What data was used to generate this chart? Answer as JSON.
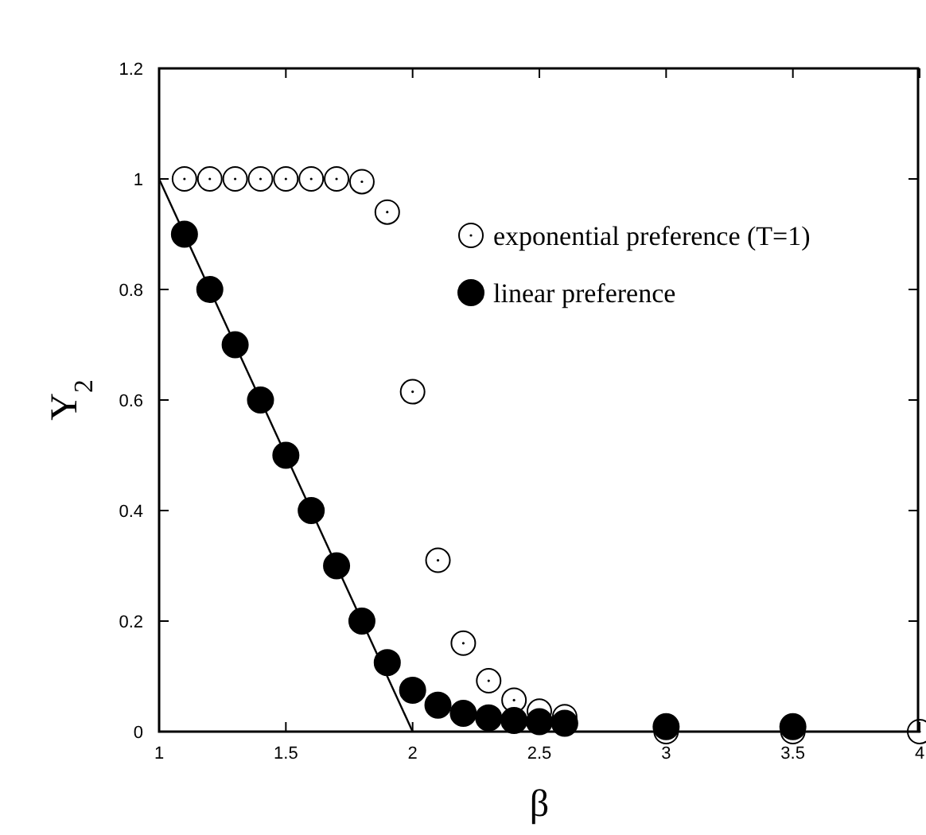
{
  "chart_data": {
    "type": "scatter",
    "xlabel": "β",
    "ylabel": "Y$_{2}$",
    "xlim": [
      1,
      4
    ],
    "ylim": [
      0,
      1.2
    ],
    "xticks": [
      1,
      1.5,
      2,
      2.5,
      3,
      3.5,
      4
    ],
    "yticks": [
      0,
      0.2,
      0.4,
      0.6,
      0.8,
      1,
      1.2
    ],
    "grid": false,
    "legend": "top right",
    "marker": "circle",
    "series": [
      {
        "name": "exponential preference (T=1)",
        "color": "#000000",
        "x": [
          1.1,
          1.2,
          1.3,
          1.4,
          1.5,
          1.6,
          1.7,
          1.8,
          1.9,
          2.0,
          2.1,
          2.2,
          2.3,
          2.4,
          2.5,
          2.6,
          3,
          3.5,
          4
        ],
        "values": [
          1,
          1,
          1,
          1,
          1,
          1,
          1,
          0.995,
          0.94,
          0.615,
          0.31,
          0.16,
          0.092,
          0.057,
          0.037,
          0.027,
          0,
          0,
          0
        ]
      },
      {
        "name": "linear preference",
        "color": "#000000",
        "x": [
          1.1,
          1.2,
          1.3,
          1.4,
          1.5,
          1.6,
          1.7,
          1.8,
          1.9,
          2.0,
          2.1,
          2.2,
          2.3,
          2.4,
          2.5,
          2.6,
          3,
          3.5
        ],
        "values": [
          0.9,
          0.8,
          0.7,
          0.6,
          0.5,
          0.4,
          0.3,
          0.2,
          0.125,
          0.075,
          0.048,
          0.033,
          0.025,
          0.02,
          0.018,
          0.015,
          0.009,
          0.009
        ]
      },
      {
        "type": "line",
        "marker": "none",
        "color": "#000000",
        "x": [
          1,
          2
        ],
        "values": [
          1,
          0
        ]
      }
    ]
  }
}
